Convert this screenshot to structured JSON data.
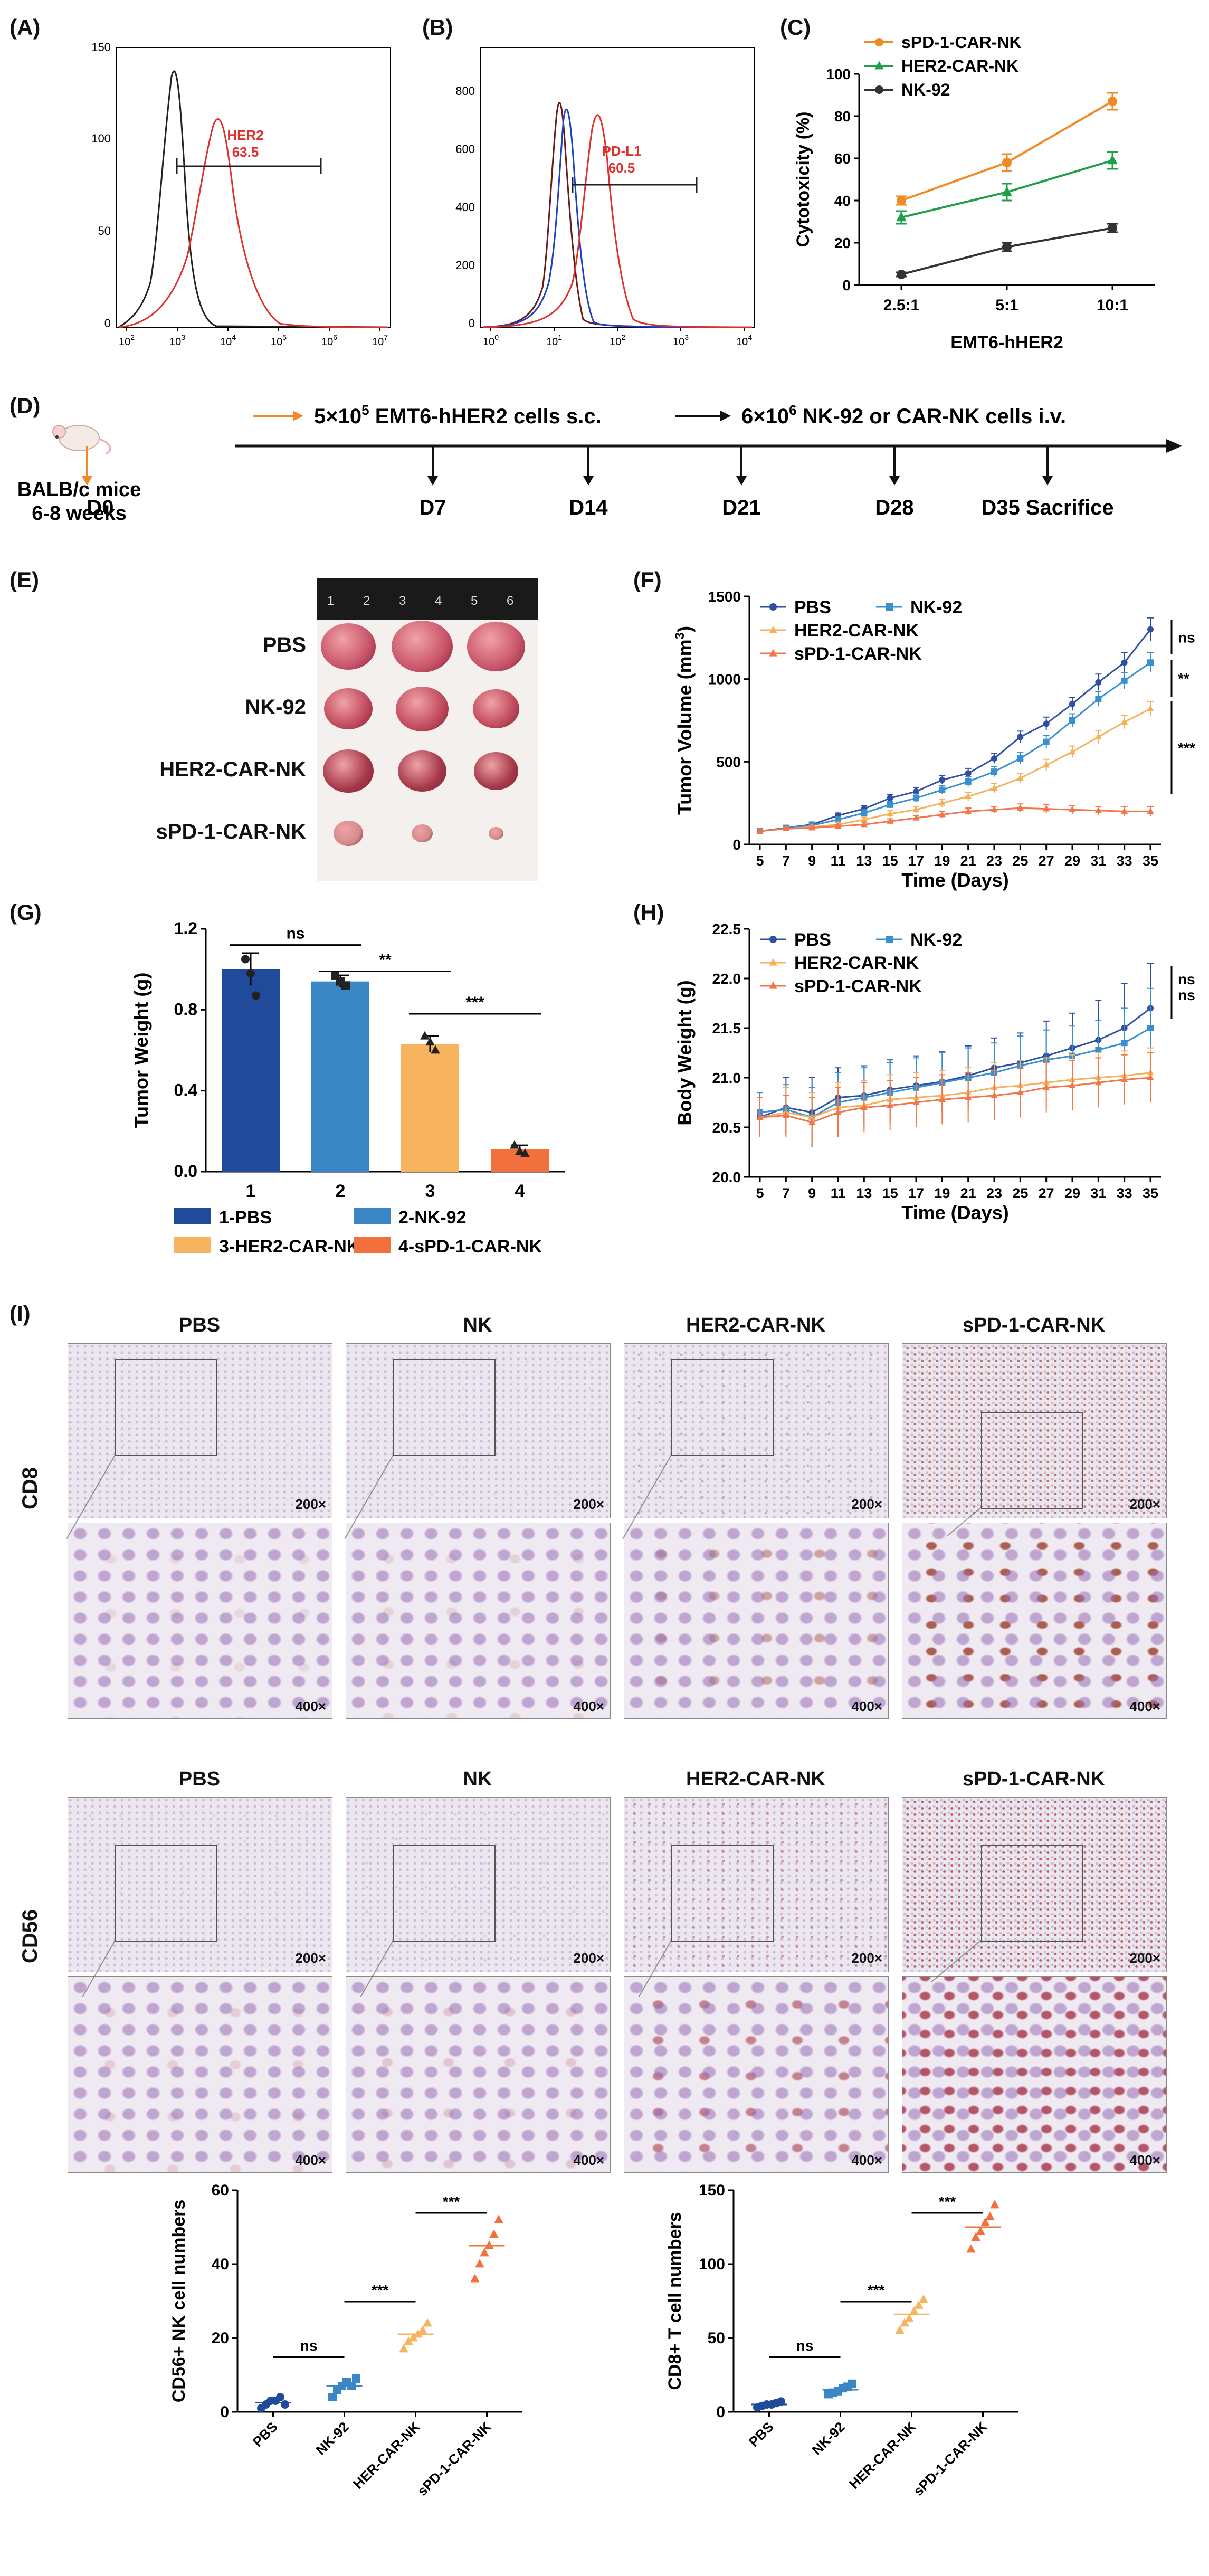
{
  "labels": {
    "A": "(A)",
    "B": "(B)",
    "C": "(C)",
    "D": "(D)",
    "E": "(E)",
    "F": "(F)",
    "G": "(G)",
    "H": "(H)",
    "I": "(I)"
  },
  "panelA": {
    "gate_label": "HER2",
    "gate_value": "63.5",
    "ticks_y": [
      "0",
      "50",
      "100",
      "150"
    ],
    "ticks_x": [
      "10",
      "10",
      "10",
      "10",
      "10",
      "10"
    ],
    "tick_exp": [
      "2",
      "3",
      "4",
      "5",
      "6",
      "7"
    ]
  },
  "panelB": {
    "gate_label": "PD-L1",
    "gate_value": "60.5",
    "ticks_y": [
      "0",
      "200",
      "400",
      "600",
      "800"
    ],
    "ticks_x": [
      "10",
      "10",
      "10",
      "10",
      "10"
    ],
    "tick_exp": [
      "0",
      "1",
      "2",
      "3",
      "4"
    ]
  },
  "chart_data": [
    {
      "id": "C",
      "type": "line",
      "title": "",
      "xlabel": "EMT6-hHER2",
      "ylabel": "Cytotoxicity (%)",
      "categories": [
        "2.5:1",
        "5:1",
        "10:1"
      ],
      "ylim": [
        0,
        100
      ],
      "yticks": [
        0,
        20,
        40,
        60,
        80,
        100
      ],
      "series": [
        {
          "name": "sPD-1-CAR-NK",
          "values": [
            40,
            58,
            87
          ],
          "errors": [
            2,
            4,
            4
          ],
          "color": "#f08a24",
          "marker": "circle"
        },
        {
          "name": "HER2-CAR-NK",
          "values": [
            32,
            44,
            59
          ],
          "errors": [
            3,
            4,
            4
          ],
          "color": "#1fa048",
          "marker": "triangle"
        },
        {
          "name": "NK-92",
          "values": [
            5,
            18,
            27
          ],
          "errors": [
            1,
            2,
            2
          ],
          "color": "#333333",
          "marker": "circle"
        }
      ]
    },
    {
      "id": "F",
      "type": "line",
      "xlabel": "Time (Days)",
      "ylabel": "Tumor Volume (mm3)",
      "x": [
        5,
        7,
        9,
        11,
        13,
        15,
        17,
        19,
        21,
        23,
        25,
        27,
        29,
        31,
        33,
        35
      ],
      "ylim": [
        0,
        1500
      ],
      "yticks": [
        0,
        500,
        1000,
        1500
      ],
      "significance": [
        "ns",
        "**",
        "***"
      ],
      "series": [
        {
          "name": "PBS",
          "color": "#2e4fa3",
          "marker": "circle",
          "values": [
            80,
            100,
            120,
            175,
            215,
            280,
            320,
            390,
            430,
            520,
            650,
            730,
            850,
            980,
            1100,
            1300
          ],
          "errors": [
            10,
            10,
            15,
            15,
            20,
            20,
            25,
            25,
            30,
            30,
            35,
            40,
            40,
            50,
            60,
            70
          ]
        },
        {
          "name": "NK-92",
          "color": "#3a8fd0",
          "marker": "square",
          "values": [
            80,
            100,
            115,
            150,
            190,
            240,
            280,
            330,
            380,
            440,
            520,
            620,
            750,
            880,
            990,
            1100
          ],
          "errors": [
            10,
            10,
            15,
            15,
            20,
            20,
            25,
            25,
            30,
            30,
            35,
            40,
            40,
            45,
            50,
            60
          ]
        },
        {
          "name": "HER2-CAR-NK",
          "color": "#f7b05a",
          "marker": "triangle",
          "values": [
            80,
            95,
            105,
            120,
            150,
            185,
            210,
            250,
            290,
            340,
            400,
            480,
            560,
            650,
            740,
            820
          ],
          "errors": [
            10,
            10,
            10,
            15,
            15,
            20,
            20,
            25,
            25,
            30,
            30,
            35,
            35,
            40,
            40,
            45
          ]
        },
        {
          "name": "sPD-1-CAR-NK",
          "color": "#f2764a",
          "marker": "triangle",
          "values": [
            80,
            95,
            100,
            110,
            120,
            140,
            160,
            180,
            200,
            210,
            220,
            215,
            210,
            205,
            200,
            200
          ],
          "errors": [
            10,
            10,
            10,
            10,
            15,
            15,
            15,
            20,
            20,
            20,
            25,
            25,
            25,
            25,
            30,
            30
          ]
        }
      ]
    },
    {
      "id": "G",
      "type": "bar",
      "xlabel": "",
      "ylabel": "Tumor Weight (g)",
      "categories": [
        "1",
        "2",
        "3",
        "4"
      ],
      "values": [
        1.0,
        0.94,
        0.63,
        0.11
      ],
      "errors": [
        0.08,
        0.03,
        0.04,
        0.02
      ],
      "colors": [
        "#1f4b9a",
        "#3b86c4",
        "#f8b35e",
        "#f2703c"
      ],
      "points": [
        [
          1.05,
          0.98,
          0.87
        ],
        [
          0.97,
          0.94,
          0.92
        ],
        [
          0.67,
          0.64,
          0.6
        ],
        [
          0.13,
          0.1,
          0.09
        ]
      ],
      "ylim": [
        0,
        1.2
      ],
      "yticks": [
        "0.0",
        "0.4",
        "0.8",
        "1.2"
      ],
      "significance": [
        "ns",
        "**",
        "***"
      ],
      "legend": [
        "1-PBS",
        "2-NK-92",
        "3-HER2-CAR-NK",
        "4-sPD-1-CAR-NK"
      ]
    },
    {
      "id": "H",
      "type": "line",
      "xlabel": "Time (Days)",
      "ylabel": "Body Weight (g)",
      "x": [
        5,
        7,
        9,
        11,
        13,
        15,
        17,
        19,
        21,
        23,
        25,
        27,
        29,
        31,
        33,
        35
      ],
      "ylim": [
        20,
        22.5
      ],
      "yticks": [
        "20.0",
        "20.5",
        "21.0",
        "21.5",
        "22.0",
        "22.5"
      ],
      "significance": [
        "ns",
        "ns"
      ],
      "series": [
        {
          "name": "PBS",
          "color": "#2e4fa3",
          "marker": "circle",
          "values": [
            20.6,
            20.7,
            20.65,
            20.8,
            20.82,
            20.88,
            20.92,
            20.96,
            21.02,
            21.1,
            21.15,
            21.22,
            21.3,
            21.38,
            21.5,
            21.7
          ],
          "errors": [
            0.2,
            0.3,
            0.35,
            0.3,
            0.3,
            0.3,
            0.3,
            0.3,
            0.3,
            0.3,
            0.3,
            0.35,
            0.35,
            0.4,
            0.45,
            0.45
          ]
        },
        {
          "name": "NK-92",
          "color": "#3a8fd0",
          "marker": "square",
          "values": [
            20.65,
            20.68,
            20.6,
            20.75,
            20.8,
            20.85,
            20.9,
            20.95,
            21.0,
            21.05,
            21.12,
            21.18,
            21.22,
            21.28,
            21.35,
            21.5
          ],
          "errors": [
            0.2,
            0.25,
            0.3,
            0.3,
            0.3,
            0.3,
            0.3,
            0.3,
            0.3,
            0.3,
            0.3,
            0.3,
            0.3,
            0.3,
            0.35,
            0.4
          ]
        },
        {
          "name": "HER2-CAR-NK",
          "color": "#f7b05a",
          "marker": "triangle",
          "values": [
            20.6,
            20.65,
            20.6,
            20.7,
            20.72,
            20.78,
            20.8,
            20.82,
            20.85,
            20.9,
            20.92,
            20.95,
            20.98,
            21.0,
            21.02,
            21.05
          ],
          "errors": [
            0.2,
            0.25,
            0.25,
            0.25,
            0.25,
            0.25,
            0.25,
            0.25,
            0.25,
            0.25,
            0.25,
            0.25,
            0.25,
            0.25,
            0.25,
            0.25
          ]
        },
        {
          "name": "sPD-1-CAR-NK",
          "color": "#f2764a",
          "marker": "triangle",
          "values": [
            20.6,
            20.62,
            20.55,
            20.65,
            20.7,
            20.72,
            20.75,
            20.78,
            20.8,
            20.82,
            20.85,
            20.9,
            20.92,
            20.95,
            20.98,
            21.0
          ],
          "errors": [
            0.2,
            0.2,
            0.25,
            0.25,
            0.25,
            0.25,
            0.25,
            0.25,
            0.25,
            0.25,
            0.25,
            0.25,
            0.25,
            0.25,
            0.25,
            0.25
          ]
        }
      ]
    },
    {
      "id": "I1",
      "type": "scatter",
      "ylabel": "CD56+ NK cell numbers",
      "categories": [
        "PBS",
        "NK-92",
        "HER-CAR-NK",
        "sPD-1-CAR-NK"
      ],
      "ylim": [
        0,
        60
      ],
      "yticks": [
        0,
        20,
        40,
        60
      ],
      "colors": [
        "#1f4b9a",
        "#3b86c4",
        "#f8b35e",
        "#f2703c"
      ],
      "points": [
        [
          1,
          2,
          3,
          3,
          4,
          2
        ],
        [
          4,
          6,
          7,
          8,
          7,
          9
        ],
        [
          17,
          19,
          20,
          21,
          22,
          24
        ],
        [
          36,
          40,
          43,
          45,
          48,
          52
        ]
      ],
      "means": [
        2.5,
        7,
        21,
        45
      ],
      "significance": [
        "ns",
        "***",
        "***"
      ]
    },
    {
      "id": "I2",
      "type": "scatter",
      "ylabel": "CD8+ T cell numbers",
      "categories": [
        "PBS",
        "NK-92",
        "HER-CAR-NK",
        "sPD-1-CAR-NK"
      ],
      "ylim": [
        0,
        150
      ],
      "yticks": [
        0,
        50,
        100,
        150
      ],
      "colors": [
        "#1f4b9a",
        "#3b86c4",
        "#f8b35e",
        "#f2703c"
      ],
      "points": [
        [
          3,
          4,
          5,
          5,
          6,
          7
        ],
        [
          12,
          13,
          14,
          16,
          17,
          19
        ],
        [
          55,
          60,
          63,
          68,
          72,
          76
        ],
        [
          110,
          118,
          122,
          128,
          132,
          140
        ]
      ],
      "means": [
        5,
        15,
        66,
        125
      ],
      "significance": [
        "ns",
        "***",
        "***"
      ]
    }
  ],
  "timeline": {
    "mouse_label_1": "BALB/c mice",
    "mouse_label_2": "6-8 weeks",
    "step1_pre": "5×10",
    "step1_exp": "5",
    "step1_post": " EMT6-hHER2 cells s.c.",
    "step2_pre": "6×10",
    "step2_exp": "6",
    "step2_post": " NK-92 or CAR-NK cells i.v.",
    "days": [
      "D0",
      "D7",
      "D14",
      "D21",
      "D28",
      "D35 Sacrifice"
    ]
  },
  "panelE": {
    "rows": [
      "PBS",
      "NK-92",
      "HER2-CAR-NK",
      "sPD-1-CAR-NK"
    ],
    "ruler": [
      "1",
      "2",
      "3",
      "4",
      "5",
      "6"
    ]
  },
  "panelI": {
    "columns": [
      "PBS",
      "NK",
      "HER2-CAR-NK",
      "sPD-1-CAR-NK"
    ],
    "rows": [
      "CD8",
      "CD56"
    ],
    "zoom_low": "200×",
    "zoom_high": "400×"
  }
}
